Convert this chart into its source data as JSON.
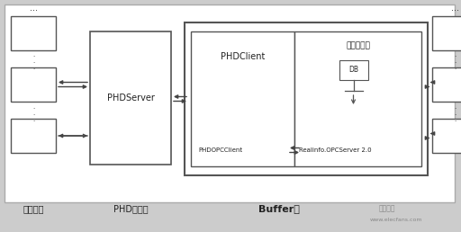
{
  "bg_color": "#d8d8d8",
  "fig_bg": "#d0d0d0",
  "labels": {
    "phd_server": "PHDServer",
    "phd_client": "PHDClient",
    "zjq_software": "紫金桥软件",
    "opc_server": "Realinfo.OPCServer 2.0",
    "phd_opc_client": "PHDOPCClient",
    "terminal_user": "终端用户",
    "phd_service": "PHD服务器",
    "buffer_machine": "Buffer机",
    "db": "DB"
  },
  "watermark": "www.elecfans.com"
}
